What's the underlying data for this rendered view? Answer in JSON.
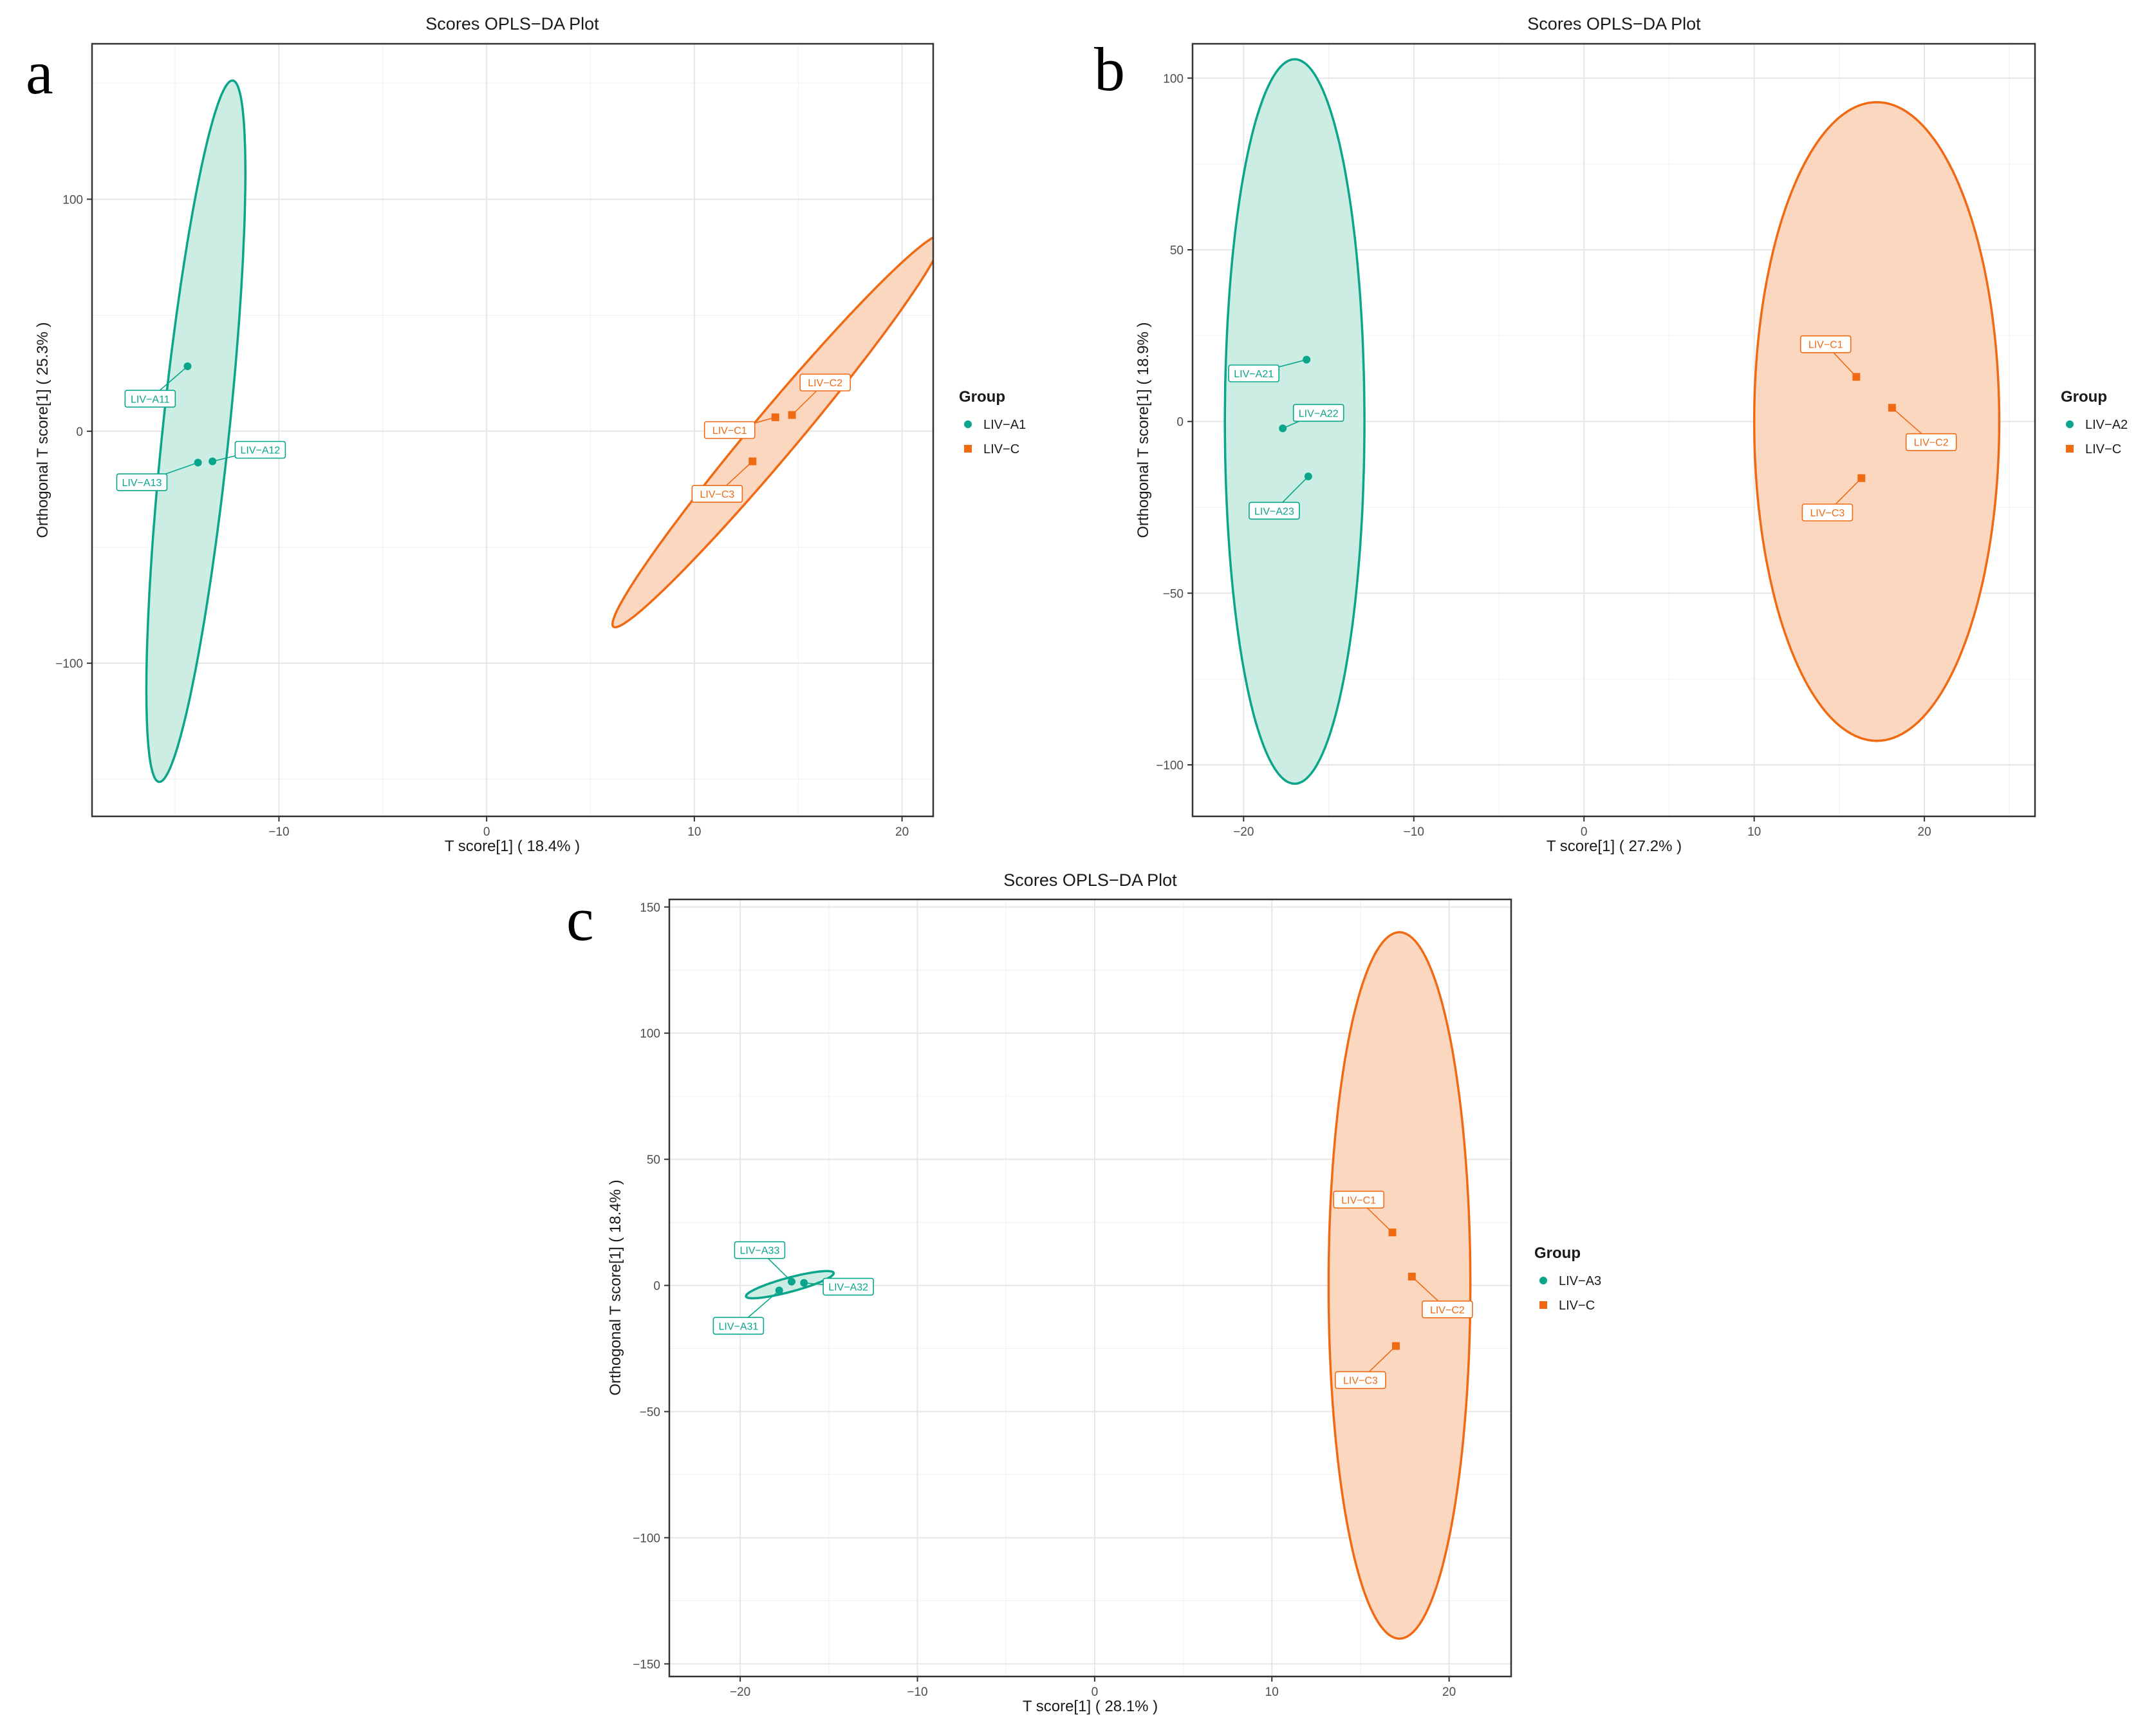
{
  "colors": {
    "groupA": "#0aa58a",
    "groupC": "#f06a14",
    "fillA": "#c9ece3",
    "fillC": "#fbd5bc"
  },
  "chart_data": [
    {
      "panel": "a",
      "type": "scatter",
      "title": "Scores OPLS−DA Plot",
      "xlabel": "T score[1] ( 18.4% )",
      "ylabel": "Orthogonal T score[1] ( 25.3% )",
      "xlim": [
        -19,
        21.5
      ],
      "ylim": [
        -166,
        167
      ],
      "xticks": [
        -10,
        0,
        10,
        20
      ],
      "xtick_labels": [
        "−10",
        "0",
        "10",
        "20"
      ],
      "yticks": [
        -100,
        0,
        100
      ],
      "ytick_labels": [
        "−100",
        "0",
        "100"
      ],
      "legend": {
        "title": "Group",
        "position": "right",
        "entries": [
          "LIV−A1",
          "LIV−C"
        ]
      },
      "ellipses": [
        {
          "group": "LIV−A1",
          "cx": -14,
          "cy": 0,
          "angle": 84,
          "a": 152,
          "b": 1.6
        },
        {
          "group": "LIV−C",
          "cx": 14,
          "cy": 0,
          "angle": 50,
          "a": 110,
          "b": 1.1
        }
      ],
      "points": [
        {
          "label": "LIV−A11",
          "group": "LIV−A1",
          "x": -14.4,
          "y": 28,
          "lx": -16.2,
          "ly": 14
        },
        {
          "label": "LIV−A12",
          "group": "LIV−A1",
          "x": -13.2,
          "y": -13,
          "lx": -10.9,
          "ly": -8
        },
        {
          "label": "LIV−A13",
          "group": "LIV−A1",
          "x": -13.9,
          "y": -13.5,
          "lx": -16.6,
          "ly": -22
        },
        {
          "label": "LIV−C1",
          "group": "LIV−C",
          "x": 13.9,
          "y": 6,
          "lx": 11.7,
          "ly": 0.5
        },
        {
          "label": "LIV−C2",
          "group": "LIV−C",
          "x": 14.7,
          "y": 7,
          "lx": 16.3,
          "ly": 21
        },
        {
          "label": "LIV−C3",
          "group": "LIV−C",
          "x": 12.8,
          "y": -13,
          "lx": 11.1,
          "ly": -27
        }
      ]
    },
    {
      "panel": "b",
      "type": "scatter",
      "title": "Scores OPLS−DA Plot",
      "xlabel": "T score[1] ( 27.2% )",
      "ylabel": "Orthogonal T score[1] ( 18.9% )",
      "xlim": [
        -23,
        26.5
      ],
      "ylim": [
        -115,
        110
      ],
      "xticks": [
        -20,
        -10,
        0,
        10,
        20
      ],
      "xtick_labels": [
        "−20",
        "−10",
        "0",
        "10",
        "20"
      ],
      "yticks": [
        -100,
        -50,
        0,
        50,
        100
      ],
      "ytick_labels": [
        "−100",
        "−50",
        "0",
        "50",
        "100"
      ],
      "legend": {
        "title": "Group",
        "position": "right",
        "entries": [
          "LIV−A2",
          "LIV−C"
        ]
      },
      "ellipses": [
        {
          "group": "LIV−A2",
          "cx": -17,
          "cy": 0,
          "angle": 90,
          "a": 105.5,
          "b": 4.1
        },
        {
          "group": "LIV−C",
          "cx": 17.2,
          "cy": 0,
          "angle": 90,
          "a": 93,
          "b": 7.2
        }
      ],
      "points": [
        {
          "label": "LIV−A21",
          "group": "LIV−A2",
          "x": -16.3,
          "y": 18,
          "lx": -19.4,
          "ly": 14
        },
        {
          "label": "LIV−A22",
          "group": "LIV−A2",
          "x": -17.7,
          "y": -2,
          "lx": -15.6,
          "ly": 2.5
        },
        {
          "label": "LIV−A23",
          "group": "LIV−A2",
          "x": -16.2,
          "y": -16,
          "lx": -18.2,
          "ly": -26
        },
        {
          "label": "LIV−C1",
          "group": "LIV−C",
          "x": 16,
          "y": 13,
          "lx": 14.2,
          "ly": 22.5
        },
        {
          "label": "LIV−C2",
          "group": "LIV−C",
          "x": 18.1,
          "y": 4,
          "lx": 20.4,
          "ly": -6
        },
        {
          "label": "LIV−C3",
          "group": "LIV−C",
          "x": 16.3,
          "y": -16.5,
          "lx": 14.3,
          "ly": -26.5
        }
      ]
    },
    {
      "panel": "c",
      "type": "scatter",
      "title": "Scores OPLS−DA Plot",
      "xlabel": "T score[1] ( 28.1% )",
      "ylabel": "Orthogonal T score[1] ( 18.4% )",
      "xlim": [
        -24,
        23.5
      ],
      "ylim": [
        -155,
        153
      ],
      "xticks": [
        -20,
        -10,
        0,
        10,
        20
      ],
      "xtick_labels": [
        "−20",
        "−10",
        "0",
        "10",
        "20"
      ],
      "yticks": [
        -150,
        -100,
        -50,
        0,
        50,
        100,
        150
      ],
      "ytick_labels": [
        "−150",
        "−100",
        "−50",
        "0",
        "50",
        "100",
        "150"
      ],
      "legend": {
        "title": "Group",
        "position": "right",
        "entries": [
          "LIV−A3",
          "LIV−C"
        ]
      },
      "ellipses": [
        {
          "group": "LIV−A3",
          "cx": -17.2,
          "cy": 0.3,
          "angle": 15,
          "a": 18,
          "b": 0.4
        },
        {
          "group": "LIV−C",
          "cx": 17.2,
          "cy": 0,
          "angle": 90,
          "a": 140,
          "b": 4
        }
      ],
      "points": [
        {
          "label": "LIV−A31",
          "group": "LIV−A3",
          "x": -17.8,
          "y": -2,
          "lx": -20.1,
          "ly": -16
        },
        {
          "label": "LIV−A32",
          "group": "LIV−A3",
          "x": -16.4,
          "y": 1,
          "lx": -13.9,
          "ly": -0.5
        },
        {
          "label": "LIV−A33",
          "group": "LIV−A3",
          "x": -17.1,
          "y": 1.5,
          "lx": -18.9,
          "ly": 14
        },
        {
          "label": "LIV−C1",
          "group": "LIV−C",
          "x": 16.8,
          "y": 21,
          "lx": 14.9,
          "ly": 34
        },
        {
          "label": "LIV−C2",
          "group": "LIV−C",
          "x": 17.9,
          "y": 3.5,
          "lx": 19.9,
          "ly": -9.5
        },
        {
          "label": "LIV−C3",
          "group": "LIV−C",
          "x": 17,
          "y": -24,
          "lx": 15,
          "ly": -37.5
        }
      ]
    }
  ]
}
